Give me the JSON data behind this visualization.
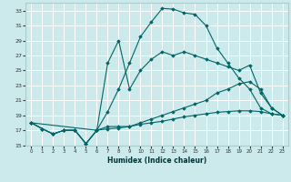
{
  "title": "",
  "xlabel": "Humidex (Indice chaleur)",
  "bg_color": "#cce9ec",
  "grid_color": "#ffffff",
  "line_color": "#006666",
  "xlim": [
    -0.5,
    23.5
  ],
  "ylim": [
    15,
    34
  ],
  "yticks": [
    15,
    17,
    19,
    21,
    23,
    25,
    27,
    29,
    31,
    33
  ],
  "xticks": [
    0,
    1,
    2,
    3,
    4,
    5,
    6,
    7,
    8,
    9,
    10,
    11,
    12,
    13,
    14,
    15,
    16,
    17,
    18,
    19,
    20,
    21,
    22,
    23
  ],
  "series": [
    {
      "x": [
        0,
        1,
        2,
        3,
        4,
        5,
        6,
        7,
        8,
        9,
        10,
        11,
        12,
        13,
        14,
        15,
        16,
        17,
        18,
        19,
        20,
        21,
        22,
        23
      ],
      "y": [
        18,
        17.2,
        16.5,
        17,
        17,
        15.2,
        17,
        19.5,
        22.5,
        26,
        29.5,
        31.5,
        33.3,
        33.2,
        32.7,
        32.5,
        31,
        28,
        26,
        24,
        22.5,
        20,
        19.2,
        19
      ]
    },
    {
      "x": [
        0,
        1,
        2,
        3,
        4,
        5,
        6,
        7,
        8,
        9,
        10,
        11,
        12,
        13,
        14,
        15,
        16,
        17,
        18,
        19,
        20,
        21,
        22,
        23
      ],
      "y": [
        18,
        17.2,
        16.5,
        17,
        17,
        15.2,
        17,
        17.5,
        17.5,
        17.5,
        18.0,
        18.5,
        19.0,
        19.5,
        20.0,
        20.5,
        21.0,
        22.0,
        22.5,
        23.2,
        23.5,
        22.5,
        20,
        19
      ]
    },
    {
      "x": [
        0,
        1,
        2,
        3,
        4,
        5,
        6,
        7,
        8,
        9,
        10,
        11,
        12,
        13,
        14,
        15,
        16,
        17,
        18,
        19,
        20,
        21,
        22,
        23
      ],
      "y": [
        18,
        17.2,
        16.5,
        17,
        17,
        15.2,
        17,
        17.2,
        17.3,
        17.5,
        17.8,
        18.0,
        18.2,
        18.5,
        18.8,
        19.0,
        19.2,
        19.4,
        19.5,
        19.6,
        19.6,
        19.5,
        19.2,
        19
      ]
    },
    {
      "x": [
        0,
        6,
        7,
        8,
        9,
        10,
        11,
        12,
        13,
        14,
        15,
        16,
        17,
        18,
        19,
        20,
        21,
        22,
        23
      ],
      "y": [
        18,
        17,
        26,
        29,
        22.5,
        25,
        26.5,
        27.5,
        27,
        27.5,
        27,
        26.5,
        26,
        25.5,
        25,
        25.7,
        22,
        20,
        19
      ]
    }
  ]
}
